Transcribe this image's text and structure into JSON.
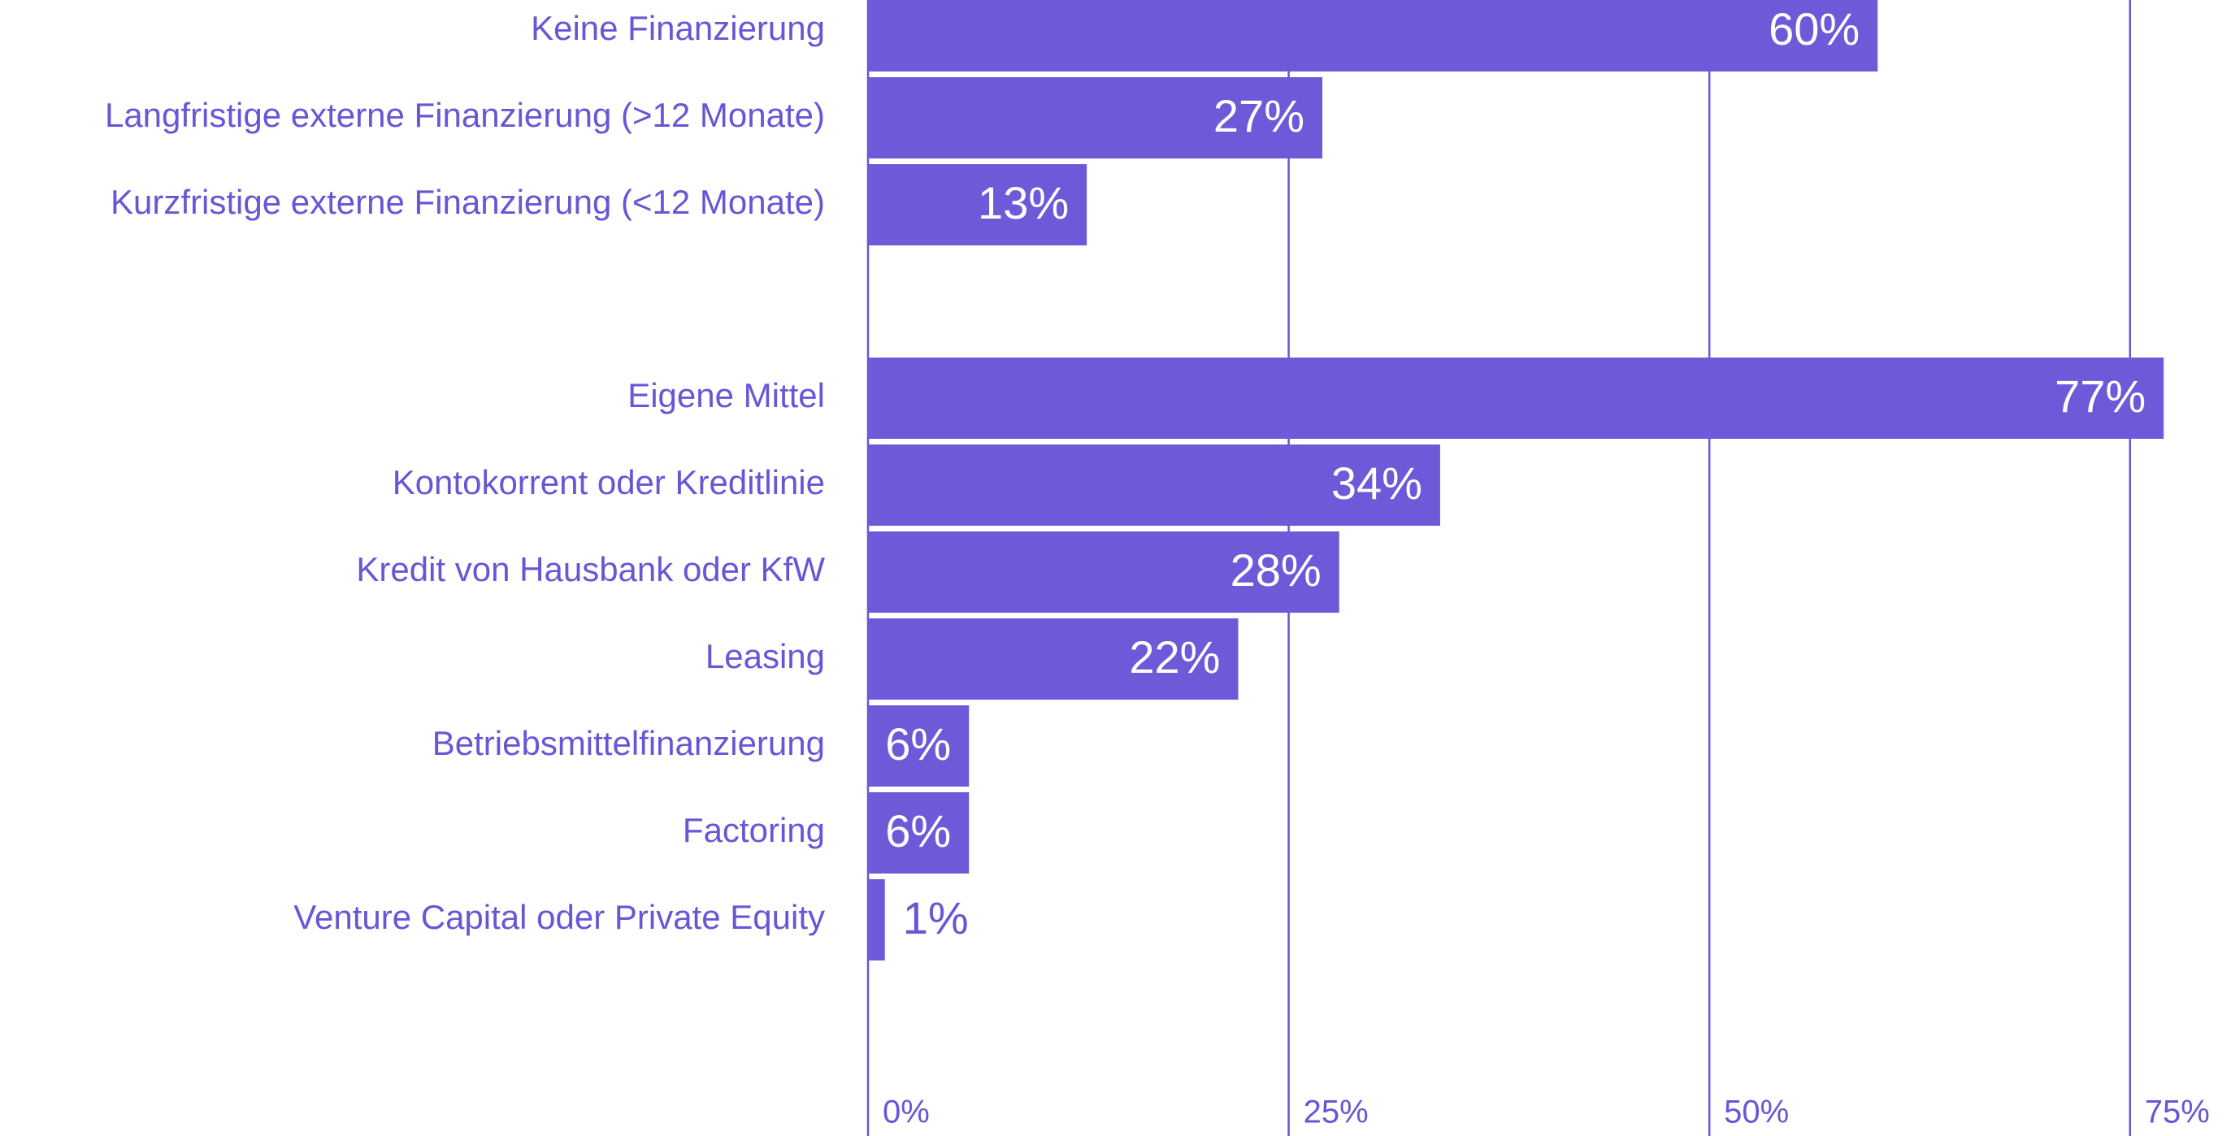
{
  "chart_data": {
    "type": "bar",
    "orientation": "horizontal",
    "categories": [
      "Keine Finanzierung",
      "Langfristige externe Finanzierung (>12 Monate)",
      "Kurzfristige externe Finanzierung (<12 Monate)",
      null,
      "Eigene Mittel",
      "Kontokorrent oder Kreditlinie",
      "Kredit von Hausbank oder KfW",
      "Leasing",
      "Betriebsmittelfinanzierung",
      "Factoring",
      "Venture Capital oder Private Equity"
    ],
    "values": [
      60,
      27,
      13,
      null,
      77,
      34,
      28,
      22,
      6,
      6,
      1
    ],
    "value_labels": [
      "60%",
      "27%",
      "13%",
      null,
      "77%",
      "34%",
      "28%",
      "22%",
      "6%",
      "6%",
      "1%"
    ],
    "color": "#6c5ad8",
    "xlim": [
      0,
      81
    ],
    "xticks": [
      {
        "value": 0,
        "label": "0%"
      },
      {
        "value": 25,
        "label": "25%"
      },
      {
        "value": 50,
        "label": "50%"
      },
      {
        "value": 75,
        "label": "75%"
      }
    ],
    "grid": true
  }
}
